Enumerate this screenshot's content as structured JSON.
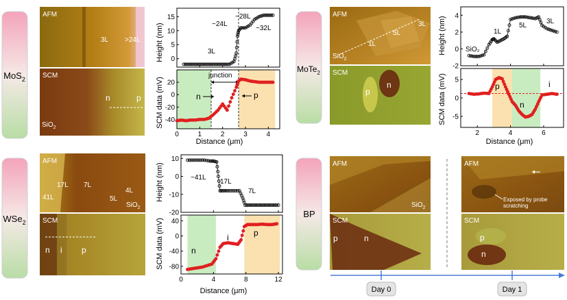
{
  "panels": {
    "mos2": {
      "material": "MoS",
      "material_sub": "2",
      "afm_label": "AFM",
      "scm_label": "SCM",
      "afm_layers": [
        "3L",
        ">24L"
      ],
      "scm_labels": [
        "n",
        "p"
      ],
      "substrate": "SiO",
      "substrate_sub": "2",
      "height_plot": {
        "ylabel": "Height (nm)",
        "annotations": [
          "3L",
          "~24L",
          "~28L",
          "~32L"
        ]
      },
      "scm_plot": {
        "ylabel": "SCM data (mV)",
        "xlabel": "Distance (μm)",
        "annotations": [
          "junction",
          "n",
          "p"
        ]
      }
    },
    "mote2": {
      "material": "MoTe",
      "material_sub": "2",
      "afm_label": "AFM",
      "scm_label": "SCM",
      "afm_layers": [
        "3L",
        "5L",
        "1L"
      ],
      "scm_labels": [
        "p",
        "n"
      ],
      "substrate": "SiO",
      "substrate_sub": "2",
      "height_plot": {
        "ylabel": "Height (nm)",
        "annotations": [
          "SiO₂",
          "1L",
          "5L",
          "3L"
        ]
      },
      "scm_plot": {
        "ylabel": "SCM data (mV)",
        "xlabel": "Distance (μm)",
        "annotations": [
          "p",
          "n",
          "i"
        ]
      }
    },
    "wse2": {
      "material": "WSe",
      "material_sub": "2",
      "afm_label": "AFM",
      "scm_label": "SCM",
      "afm_layers": [
        "17L",
        "7L",
        "41L",
        "4L",
        "5L"
      ],
      "scm_labels": [
        "n",
        "i",
        "p"
      ],
      "substrate": "SiO",
      "substrate_sub": "2",
      "height_plot": {
        "ylabel": "Height (nm)",
        "annotations": [
          "~41L",
          "17L",
          "7L"
        ]
      },
      "scm_plot": {
        "ylabel": "SCM data (mV)",
        "xlabel": "Distance (μm)",
        "annotations": [
          "n",
          "i",
          "p"
        ]
      }
    },
    "bp": {
      "material": "BP",
      "afm_label": "AFM",
      "scm_label": "SCM",
      "substrate": "SiO",
      "substrate_sub": "2",
      "scm_labels": [
        "p",
        "n"
      ],
      "day1_labels": [
        "p",
        "n"
      ],
      "probe_note": [
        "Exposed by probe",
        "scratching"
      ],
      "timeline": [
        "Day 0",
        "Day 1"
      ]
    }
  },
  "chart_data": [
    {
      "type": "scatter",
      "name_ref": "mos2-height",
      "xlim": [
        0,
        4.5
      ],
      "ylim": [
        -3,
        18
      ],
      "xticks": [
        0,
        1,
        2,
        3,
        4
      ],
      "yticks": [
        0,
        5,
        10,
        15
      ],
      "series": [
        {
          "x": [
            0.3,
            0.5,
            0.7,
            0.9,
            1.1,
            1.3,
            1.5,
            1.7,
            1.9,
            2.1,
            2.3,
            2.5,
            2.6,
            2.65,
            2.7,
            2.8,
            3.0,
            3.2,
            3.4,
            3.6,
            3.8,
            4.0,
            4.2
          ],
          "y": [
            -2,
            -2,
            -2,
            -2,
            -2,
            -2,
            -2,
            -2,
            -2,
            -2,
            -2,
            -1,
            2,
            8,
            10,
            11,
            11,
            12,
            14,
            15,
            15.5,
            15.5,
            15.5
          ]
        }
      ]
    },
    {
      "type": "scatter",
      "name_ref": "mos2-scm",
      "xlim": [
        0,
        4.5
      ],
      "ylim": [
        -55,
        40
      ],
      "xticks": [
        0,
        1,
        2,
        3,
        4
      ],
      "yticks": [
        -40,
        -20,
        0,
        20
      ],
      "series": [
        {
          "x": [
            0.0,
            0.2,
            0.4,
            0.6,
            0.8,
            1.0,
            1.2,
            1.4,
            1.6,
            1.8,
            2.0,
            2.2,
            2.4,
            2.6,
            2.7,
            2.8,
            3.0,
            3.2,
            3.4,
            3.6,
            3.8,
            4.0,
            4.2
          ],
          "y": [
            -42,
            -41,
            -42,
            -41,
            -41,
            -40,
            -40,
            -38,
            -32,
            -25,
            -15,
            -25,
            -5,
            12,
            22,
            25,
            24,
            22,
            21,
            20,
            20,
            20,
            20
          ]
        }
      ],
      "regions": [
        {
          "from": 0,
          "to": 1.5,
          "color": "#c8ecc0"
        },
        {
          "from": 2.7,
          "to": 4.3,
          "color": "#fbe1b0"
        }
      ]
    },
    {
      "type": "scatter",
      "name_ref": "mote2-height",
      "xlim": [
        1,
        7.2
      ],
      "ylim": [
        -2,
        5
      ],
      "xticks": [
        2,
        4,
        6
      ],
      "yticks": [
        -2,
        0,
        2,
        4
      ],
      "series": [
        {
          "x": [
            1.5,
            1.8,
            2.1,
            2.4,
            2.7,
            2.9,
            3.0,
            3.2,
            3.4,
            3.6,
            3.8,
            4.0,
            4.3,
            4.6,
            4.9,
            5.2,
            5.5,
            5.7,
            5.9,
            6.2,
            6.5,
            6.8
          ],
          "y": [
            -0.8,
            -0.9,
            -0.9,
            -0.7,
            0.5,
            1.1,
            1.2,
            0.8,
            1.0,
            1.2,
            1.5,
            3.5,
            3.7,
            3.8,
            3.8,
            3.7,
            3.6,
            3.8,
            2.8,
            2.4,
            2.2,
            2.0
          ]
        }
      ]
    },
    {
      "type": "scatter",
      "name_ref": "mote2-scm",
      "xlim": [
        1,
        7.2
      ],
      "ylim": [
        -8,
        8
      ],
      "xticks": [
        2,
        4,
        6
      ],
      "yticks": [
        -5,
        0,
        5
      ],
      "series": [
        {
          "x": [
            1.5,
            1.8,
            2.1,
            2.4,
            2.7,
            2.9,
            3.1,
            3.3,
            3.5,
            3.7,
            3.9,
            4.1,
            4.3,
            4.5,
            4.7,
            4.9,
            5.1,
            5.3,
            5.5,
            5.7,
            5.9,
            6.2,
            6.5,
            6.8
          ],
          "y": [
            1.2,
            1.0,
            1.1,
            1.3,
            1.2,
            3.0,
            5.0,
            5.5,
            5.2,
            3.0,
            1.0,
            -1.0,
            -2.0,
            -3.5,
            -4.5,
            -5.2,
            -5.0,
            -4.5,
            -3.0,
            -1.0,
            0.8,
            1.0,
            1.2,
            1.0
          ]
        }
      ],
      "regions": [
        {
          "from": 2.9,
          "to": 4.1,
          "color": "#fbe1b0"
        },
        {
          "from": 4.1,
          "to": 5.8,
          "color": "#c8ecc0"
        }
      ]
    },
    {
      "type": "scatter",
      "name_ref": "wse2-height",
      "xlim": [
        0,
        12.5
      ],
      "ylim": [
        -20,
        12
      ],
      "xticks": [
        0,
        4,
        8,
        12
      ],
      "yticks": [
        -20,
        -10,
        0,
        10
      ],
      "series": [
        {
          "x": [
            0.8,
            1.5,
            2.2,
            2.9,
            3.6,
            4.0,
            4.4,
            4.6,
            4.8,
            5.2,
            5.8,
            6.5,
            7.2,
            7.6,
            7.9,
            8.4,
            9.0,
            9.6,
            10.2,
            10.8,
            11.4,
            12.0
          ],
          "y": [
            9,
            9,
            9,
            9,
            8.5,
            8.5,
            8,
            0,
            -8,
            -8,
            -8,
            -8,
            -8,
            -12,
            -16,
            -16,
            -16,
            -16,
            -16,
            -16,
            -16,
            -16
          ]
        }
      ]
    },
    {
      "type": "scatter",
      "name_ref": "wse2-scm",
      "xlim": [
        0,
        12.5
      ],
      "ylim": [
        -100,
        55
      ],
      "xticks": [
        0,
        4,
        8,
        12
      ],
      "yticks": [
        -80,
        -40,
        0,
        40
      ],
      "series": [
        {
          "x": [
            0.8,
            1.4,
            2.0,
            2.6,
            3.2,
            3.8,
            4.3,
            4.8,
            5.2,
            5.8,
            6.4,
            7.0,
            7.4,
            7.8,
            8.2,
            8.8,
            9.4,
            10.0,
            10.6,
            11.2,
            11.8
          ],
          "y": [
            -88,
            -86,
            -84,
            -82,
            -78,
            -74,
            -60,
            -30,
            -20,
            -18,
            -20,
            -22,
            -10,
            25,
            30,
            30,
            30,
            31,
            30,
            30,
            32
          ]
        }
      ],
      "regions": [
        {
          "from": 0.8,
          "to": 4.3,
          "color": "#c8ecc0"
        },
        {
          "from": 7.8,
          "to": 12.2,
          "color": "#fbe1b0"
        }
      ]
    }
  ]
}
